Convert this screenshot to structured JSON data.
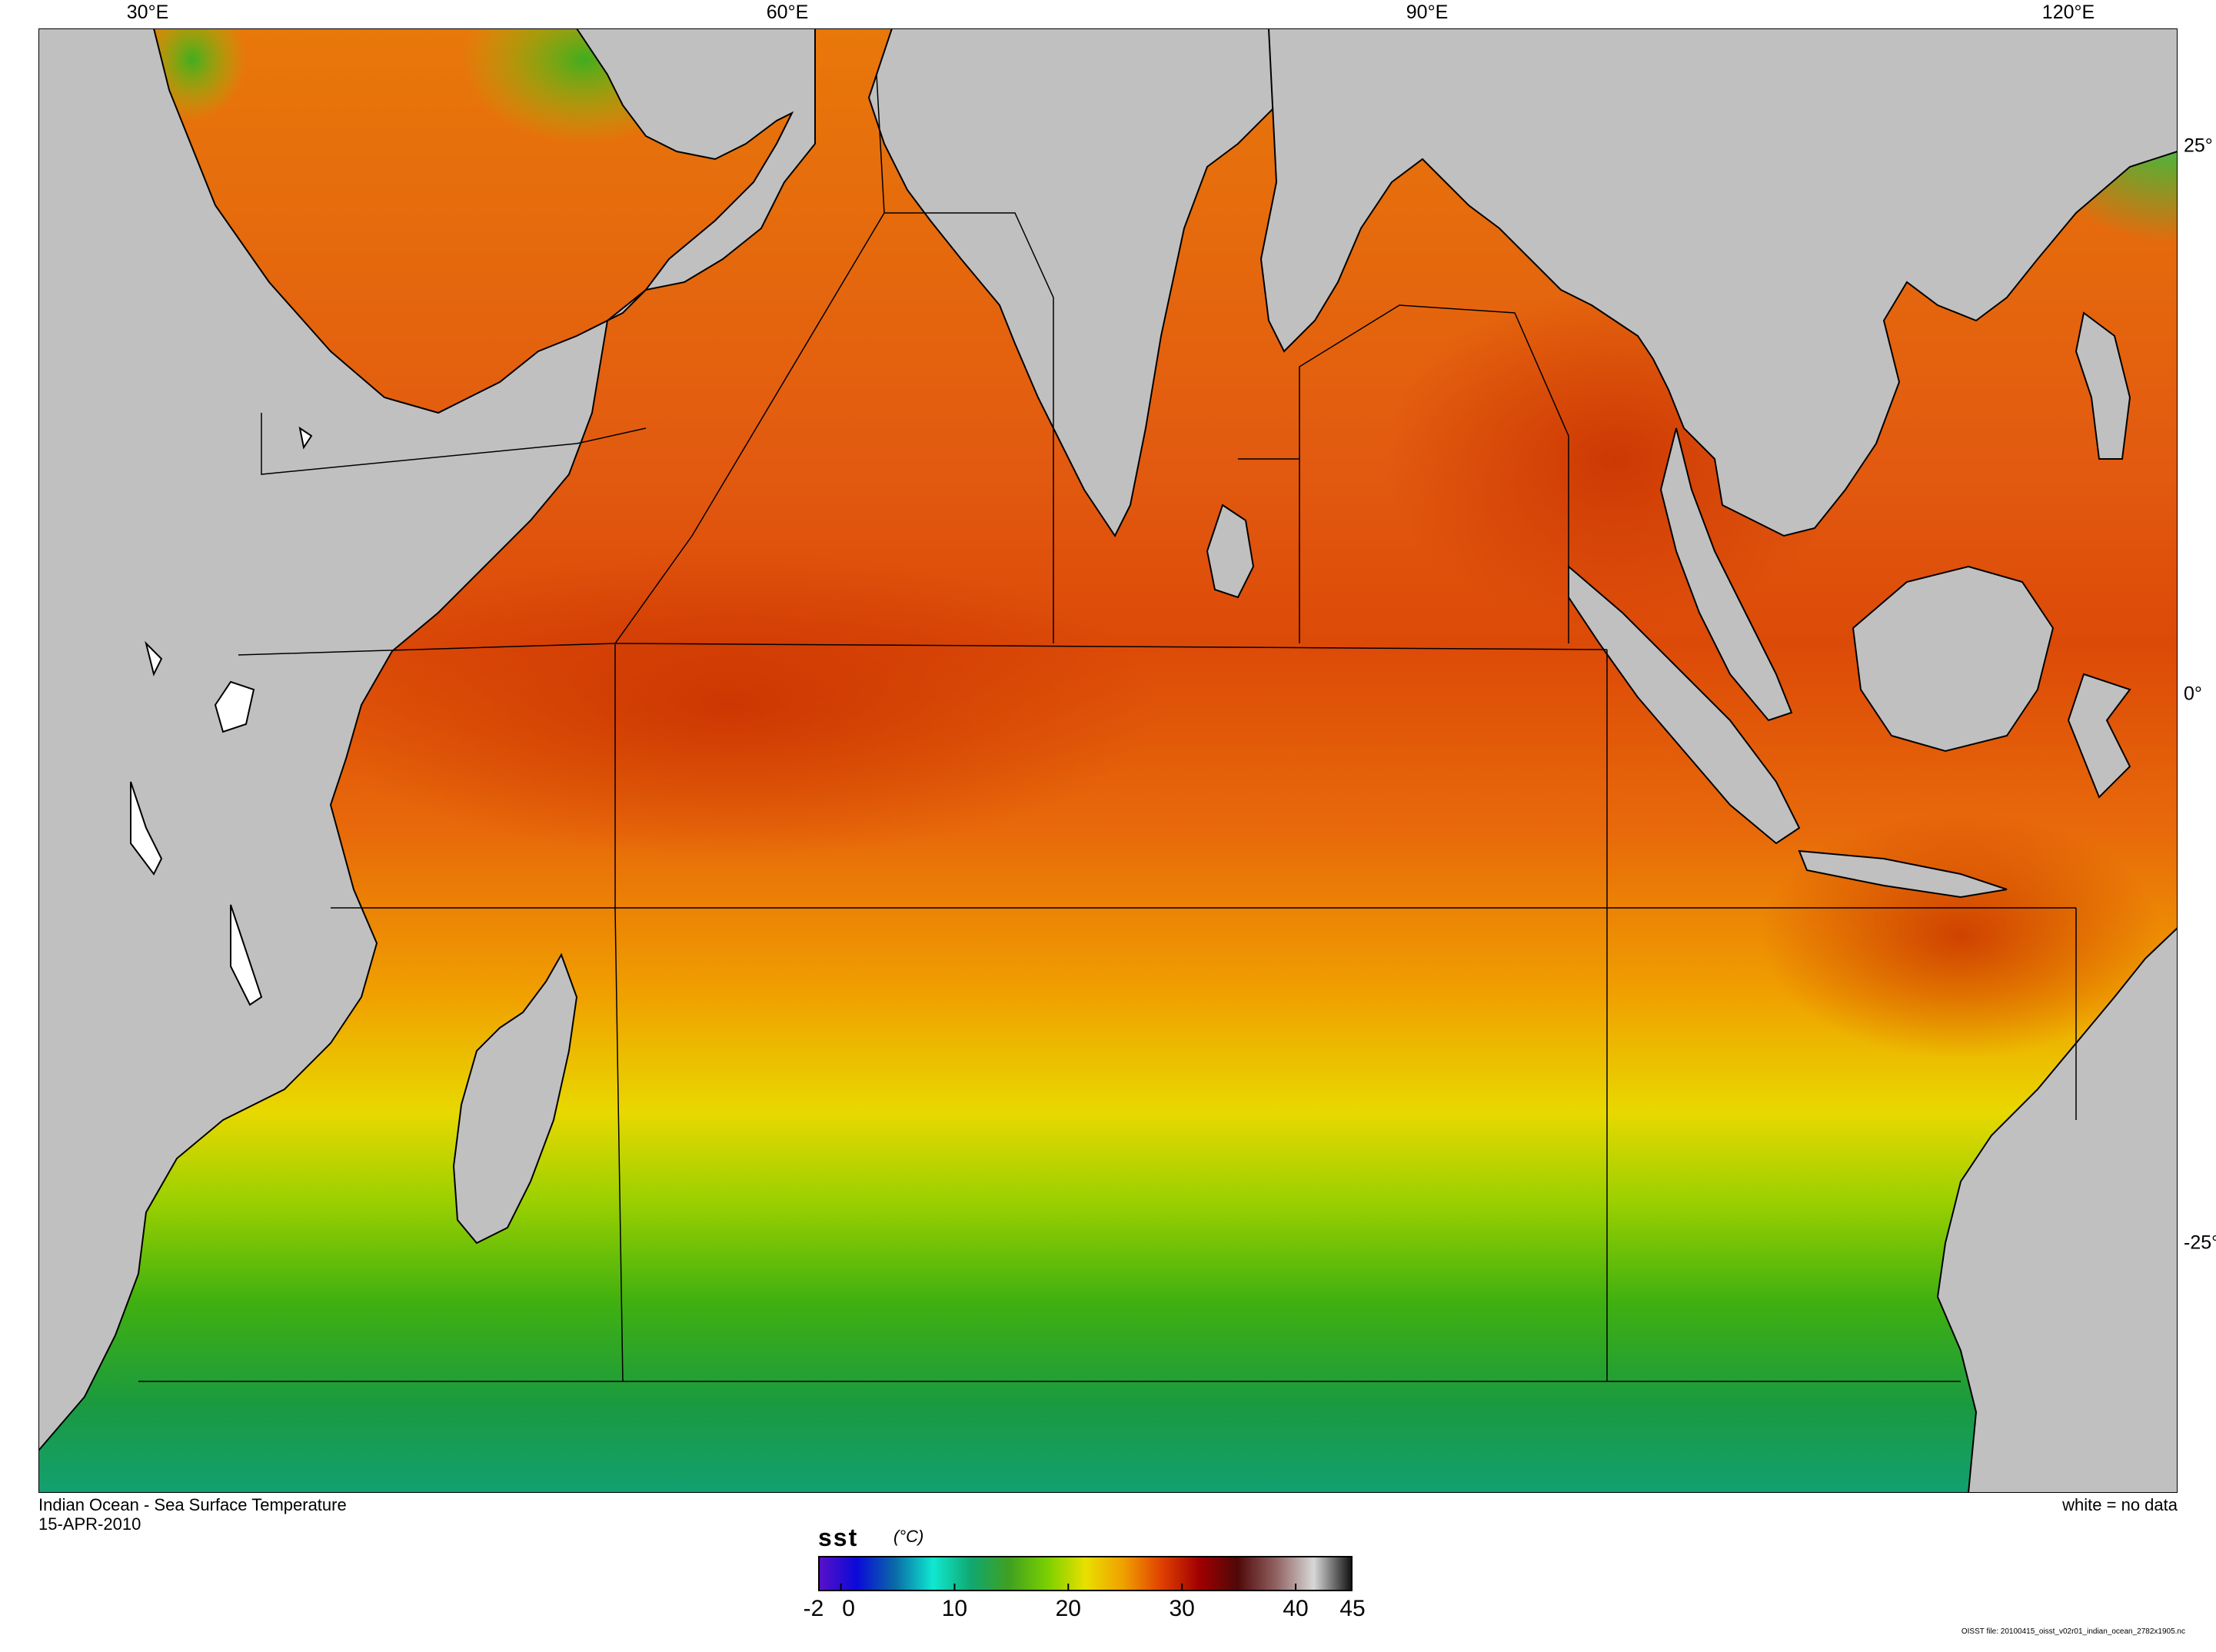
{
  "map": {
    "title": "Indian Ocean - Sea Surface Temperature",
    "date": "15-APR-2010",
    "no_data_note": "white = no data",
    "footer_file": "OISST file: 20100415_oisst_v02r01_indian_ocean_2782x1905.nc",
    "land_color": "#c0c0c0",
    "no_data_color": "#ffffff",
    "longitude_labels": [
      "30°E",
      "60°E",
      "90°E",
      "120°E"
    ],
    "latitude_labels": [
      "25°",
      "0°",
      "-25°"
    ]
  },
  "colorbar": {
    "variable": "sst",
    "unit": "(°C)",
    "tick_labels": [
      "-2",
      "0",
      "10",
      "20",
      "30",
      "40",
      "45"
    ],
    "tick_values": [
      -2,
      0,
      10,
      20,
      30,
      40,
      45
    ],
    "range": [
      -2,
      45
    ],
    "colors": [
      "#5a10c8",
      "#0a0ad8",
      "#0a6aa8",
      "#10e8d0",
      "#10a870",
      "#40a020",
      "#7ad000",
      "#e8e000",
      "#f0a000",
      "#e04000",
      "#a00000",
      "#500808",
      "#906060",
      "#d8d8d8",
      "#101010"
    ]
  }
}
